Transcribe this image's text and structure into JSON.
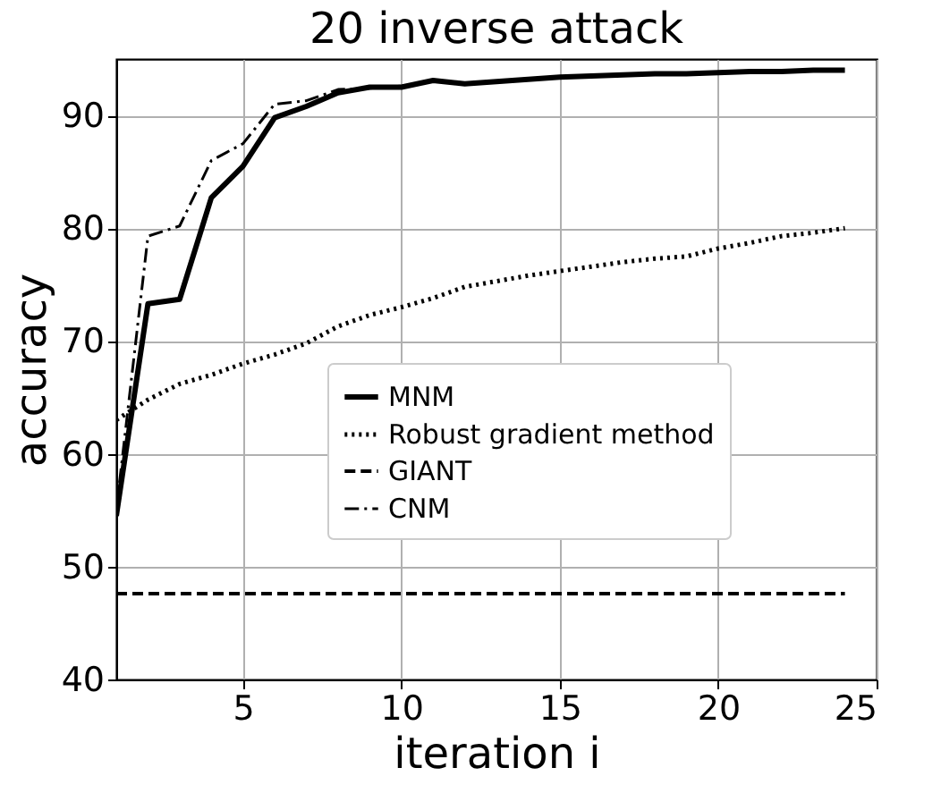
{
  "chart_data": {
    "type": "line",
    "title": "20 inverse attack",
    "xlabel": "iteration i",
    "ylabel": "accuracy",
    "x": [
      1,
      2,
      3,
      4,
      5,
      6,
      7,
      8,
      9,
      10,
      11,
      12,
      13,
      14,
      15,
      16,
      17,
      18,
      19,
      20,
      21,
      22,
      23,
      24
    ],
    "series": [
      {
        "name": "MNM",
        "color": "#000000",
        "line_style": "solid",
        "values": [
          54.5,
          73.3,
          73.7,
          82.7,
          85.5,
          89.8,
          90.8,
          92.0,
          92.5,
          92.5,
          93.1,
          92.8,
          93.0,
          93.2,
          93.4,
          93.5,
          93.6,
          93.7,
          93.7,
          93.8,
          93.9,
          93.9,
          94.0,
          94.0
        ]
      },
      {
        "name": "Robust gradient method",
        "color": "#000000",
        "line_style": "dotted",
        "values": [
          63.0,
          64.8,
          66.2,
          67.0,
          68.0,
          68.8,
          69.8,
          71.3,
          72.3,
          73.0,
          73.8,
          74.8,
          75.3,
          75.8,
          76.2,
          76.6,
          77.0,
          77.3,
          77.5,
          78.2,
          78.7,
          79.3,
          79.6,
          80.0
        ]
      },
      {
        "name": "GIANT",
        "color": "#000000",
        "line_style": "dashed",
        "values": [
          47.6,
          47.6,
          47.6,
          47.6,
          47.6,
          47.6,
          47.6,
          47.6,
          47.6,
          47.6,
          47.6,
          47.6,
          47.6,
          47.6,
          47.6,
          47.6,
          47.6,
          47.6,
          47.6,
          47.6,
          47.6,
          47.6,
          47.6,
          47.6
        ]
      },
      {
        "name": "CNM",
        "color": "#000000",
        "line_style": "dashdot",
        "values": [
          55.0,
          79.3,
          80.2,
          86.0,
          87.5,
          91.0,
          91.3,
          92.3,
          92.4,
          92.6,
          93.0,
          92.8,
          93.0,
          93.2,
          93.4,
          93.5,
          93.6,
          93.7,
          93.7,
          93.8,
          93.9,
          93.9,
          94.0,
          94.0
        ]
      }
    ],
    "xlim": [
      1,
      25
    ],
    "xticks": [
      5,
      10,
      15,
      20,
      25
    ],
    "ylim": [
      40,
      95
    ],
    "yticks": [
      40,
      50,
      60,
      70,
      80,
      90
    ],
    "grid": true,
    "legend": "bottom right",
    "marker": "none"
  }
}
